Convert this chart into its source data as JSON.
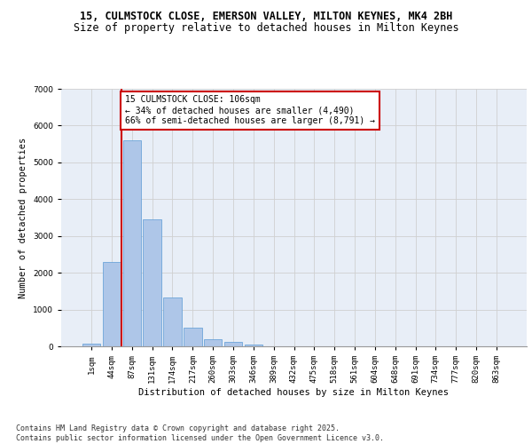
{
  "title_line1": "15, CULMSTOCK CLOSE, EMERSON VALLEY, MILTON KEYNES, MK4 2BH",
  "title_line2": "Size of property relative to detached houses in Milton Keynes",
  "xlabel": "Distribution of detached houses by size in Milton Keynes",
  "ylabel": "Number of detached properties",
  "categories": [
    "1sqm",
    "44sqm",
    "87sqm",
    "131sqm",
    "174sqm",
    "217sqm",
    "260sqm",
    "303sqm",
    "346sqm",
    "389sqm",
    "432sqm",
    "475sqm",
    "518sqm",
    "561sqm",
    "604sqm",
    "648sqm",
    "691sqm",
    "734sqm",
    "777sqm",
    "820sqm",
    "863sqm"
  ],
  "values": [
    75,
    2300,
    5600,
    3450,
    1320,
    510,
    195,
    110,
    55,
    0,
    0,
    0,
    0,
    0,
    0,
    0,
    0,
    0,
    0,
    0,
    0
  ],
  "bar_color": "#aec6e8",
  "bar_edge_color": "#5b9bd5",
  "grid_color": "#d0d0d0",
  "background_color": "#e8eef7",
  "vline_color": "#cc0000",
  "vline_x_index": 2,
  "annotation_text": "15 CULMSTOCK CLOSE: 106sqm\n← 34% of detached houses are smaller (4,490)\n66% of semi-detached houses are larger (8,791) →",
  "annotation_box_edgecolor": "#cc0000",
  "annotation_box_facecolor": "#ffffff",
  "ylim": [
    0,
    7000
  ],
  "yticks": [
    0,
    1000,
    2000,
    3000,
    4000,
    5000,
    6000,
    7000
  ],
  "footnote": "Contains HM Land Registry data © Crown copyright and database right 2025.\nContains public sector information licensed under the Open Government Licence v3.0.",
  "title_fontsize": 8.5,
  "subtitle_fontsize": 8.5,
  "tick_fontsize": 6.5,
  "ylabel_fontsize": 7.5,
  "xlabel_fontsize": 7.5,
  "annotation_fontsize": 7,
  "footnote_fontsize": 6
}
